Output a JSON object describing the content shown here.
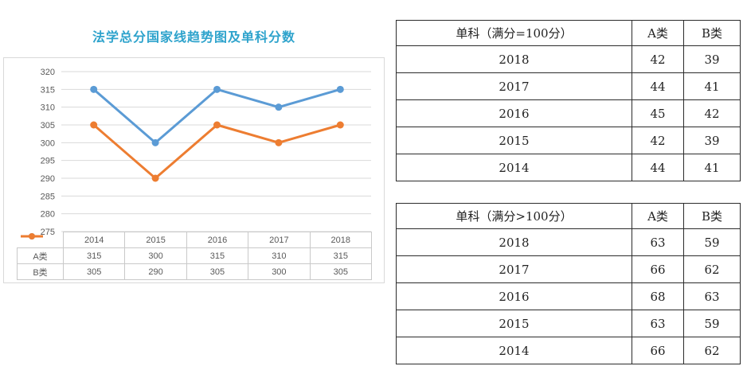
{
  "chart": {
    "title": "法学总分国家线趋势图及单科分数",
    "title_color": "#2ea3cc"
  },
  "chart_data": {
    "type": "line",
    "title": "法学总分国家线趋势图及单科分数",
    "categories": [
      "2014",
      "2015",
      "2016",
      "2017",
      "2018"
    ],
    "series": [
      {
        "name": "A类",
        "color": "#5b9bd5",
        "values": [
          315,
          300,
          315,
          310,
          315
        ]
      },
      {
        "name": "B类",
        "color": "#ed7d31",
        "values": [
          305,
          290,
          305,
          300,
          305
        ]
      }
    ],
    "ylim": [
      275,
      320
    ],
    "yticks": [
      320,
      315,
      310,
      305,
      300,
      295,
      290,
      285,
      280,
      275
    ],
    "grid": true,
    "gridline_color": "#d9d9d9",
    "axis_text_color": "#595959",
    "legend_position": "bottom-table",
    "legend_entries": [
      "A类",
      "B类"
    ]
  },
  "tables": [
    {
      "header": [
        "单科（满分=100分）",
        "A类",
        "B类"
      ],
      "rows": [
        [
          "2018",
          "42",
          "39"
        ],
        [
          "2017",
          "44",
          "41"
        ],
        [
          "2016",
          "45",
          "42"
        ],
        [
          "2015",
          "42",
          "39"
        ],
        [
          "2014",
          "44",
          "41"
        ]
      ]
    },
    {
      "header": [
        "单科（满分>100分）",
        "A类",
        "B类"
      ],
      "rows": [
        [
          "2018",
          "63",
          "59"
        ],
        [
          "2017",
          "66",
          "62"
        ],
        [
          "2016",
          "68",
          "63"
        ],
        [
          "2015",
          "63",
          "59"
        ],
        [
          "2014",
          "66",
          "62"
        ]
      ]
    }
  ]
}
